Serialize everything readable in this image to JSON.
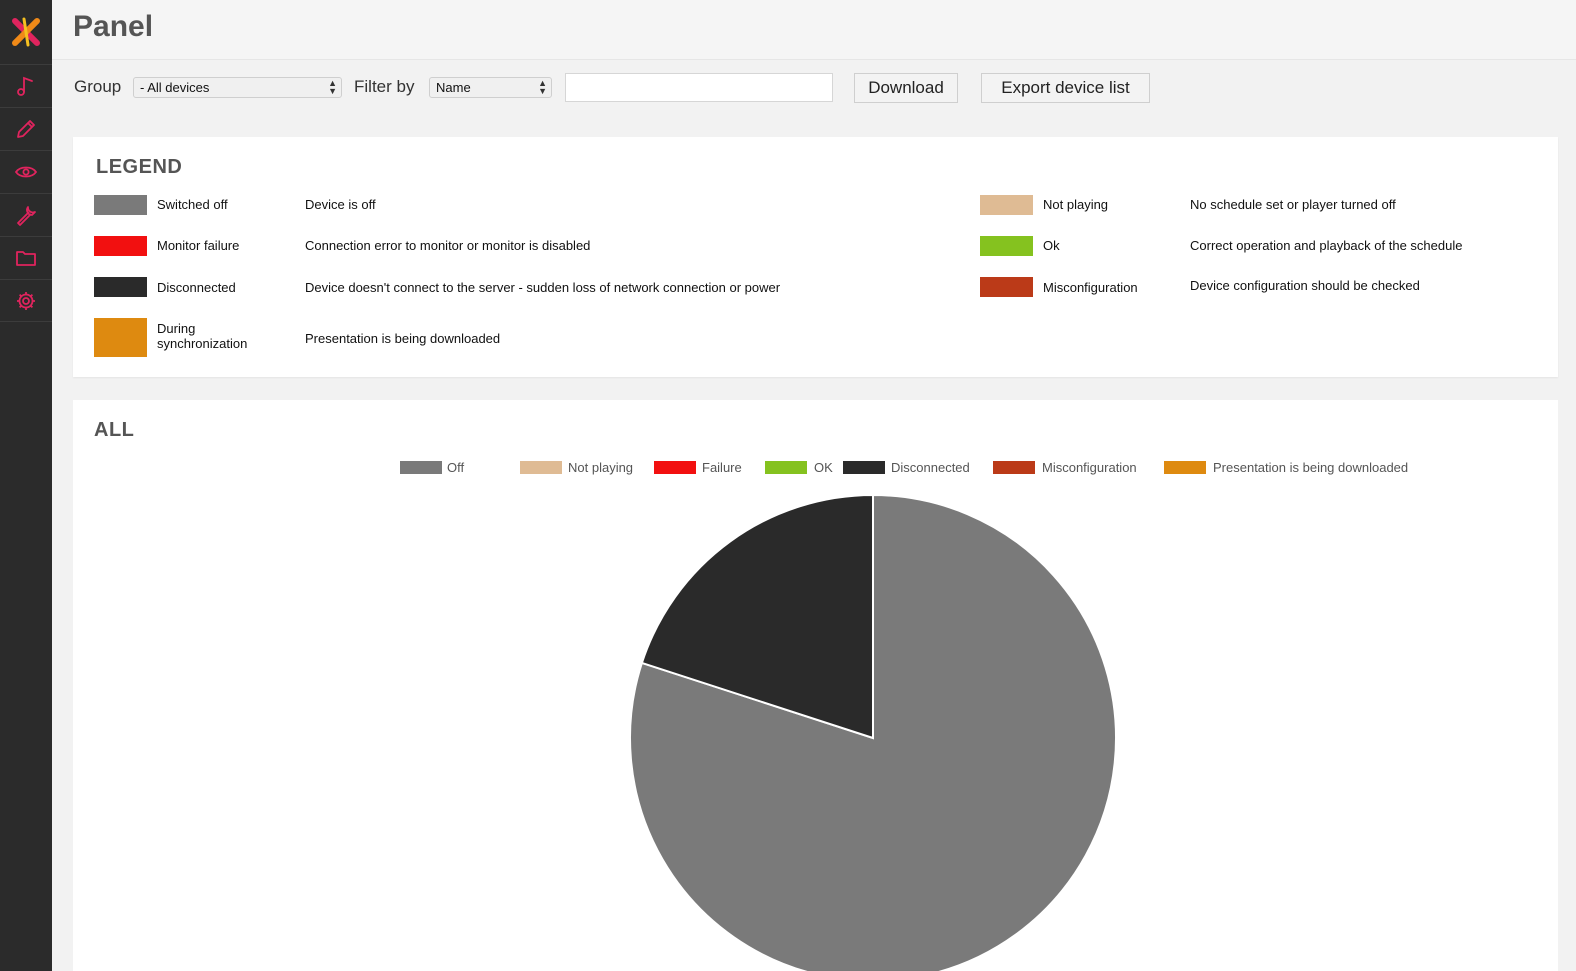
{
  "sidebar": {
    "items": [
      {
        "icon": "music-note-icon"
      },
      {
        "icon": "pencil-icon"
      },
      {
        "icon": "eye-icon"
      },
      {
        "icon": "wrench-icon"
      },
      {
        "icon": "folder-icon"
      },
      {
        "icon": "gear-icon"
      }
    ],
    "accent_color": "#e0245e"
  },
  "header": {
    "title": "Panel"
  },
  "toolbar": {
    "group_label": "Group",
    "group_value": "- All devices",
    "filter_label": "Filter by",
    "filter_value": "Name",
    "filter_text": "",
    "download_label": "Download",
    "export_label": "Export device list"
  },
  "legend": {
    "title": "LEGEND",
    "items": [
      {
        "name": "Switched off",
        "desc": "Device is off",
        "color": "#7a7a7a"
      },
      {
        "name": "Monitor failure",
        "desc": "Connection error to monitor or monitor is disabled",
        "color": "#f21010"
      },
      {
        "name": "Disconnected",
        "desc": "Device doesn't connect to the server - sudden loss of network connection or power",
        "color": "#2a2a2a"
      },
      {
        "name": "During synchronization",
        "desc": "Presentation is being downloaded",
        "color": "#de8a10"
      },
      {
        "name": "Not playing",
        "desc": "No schedule set or player turned off",
        "color": "#dfbb94"
      },
      {
        "name": "Ok",
        "desc": "Correct operation and playback of the schedule",
        "color": "#85c21f"
      },
      {
        "name": "Misconfiguration",
        "desc": "Device configuration should be checked",
        "color": "#bb3a18"
      }
    ]
  },
  "all_chart": {
    "title": "ALL",
    "chart_data": {
      "type": "pie",
      "title": "ALL",
      "legend_position": "top",
      "categories": [
        "Off",
        "Not playing",
        "Failure",
        "OK",
        "Disconnected",
        "Misconfiguration",
        "Presentation is being downloaded"
      ],
      "values": [
        80,
        0,
        0,
        0,
        20,
        0,
        0
      ],
      "colors": [
        "#7a7a7a",
        "#dfbb94",
        "#f21010",
        "#85c21f",
        "#2a2a2a",
        "#bb3a18",
        "#de8a10"
      ]
    }
  }
}
